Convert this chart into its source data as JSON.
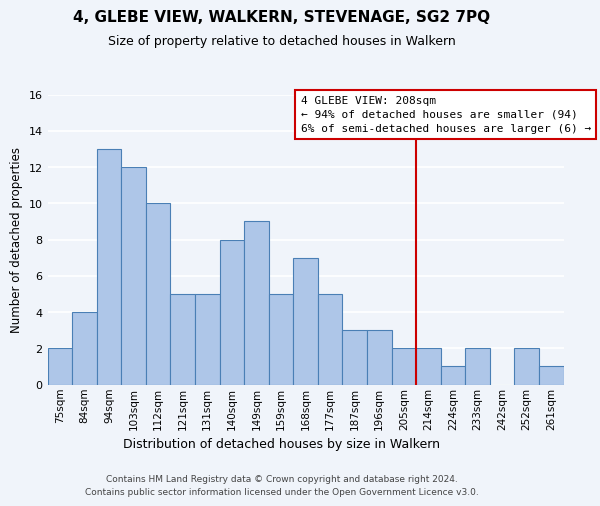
{
  "title": "4, GLEBE VIEW, WALKERN, STEVENAGE, SG2 7PQ",
  "subtitle": "Size of property relative to detached houses in Walkern",
  "xlabel": "Distribution of detached houses by size in Walkern",
  "ylabel": "Number of detached properties",
  "bar_labels": [
    "75sqm",
    "84sqm",
    "94sqm",
    "103sqm",
    "112sqm",
    "121sqm",
    "131sqm",
    "140sqm",
    "149sqm",
    "159sqm",
    "168sqm",
    "177sqm",
    "187sqm",
    "196sqm",
    "205sqm",
    "214sqm",
    "224sqm",
    "233sqm",
    "242sqm",
    "252sqm",
    "261sqm"
  ],
  "bar_values": [
    2,
    4,
    13,
    12,
    10,
    5,
    5,
    8,
    9,
    5,
    7,
    5,
    3,
    3,
    2,
    2,
    1,
    2,
    0,
    2,
    1
  ],
  "bar_color": "#aec6e8",
  "bar_edge_color": "#4a7fb5",
  "vline_x": 14.5,
  "vline_color": "#cc0000",
  "ylim": [
    0,
    16
  ],
  "yticks": [
    0,
    2,
    4,
    6,
    8,
    10,
    12,
    14,
    16
  ],
  "annotation_title": "4 GLEBE VIEW: 208sqm",
  "annotation_line1": "← 94% of detached houses are smaller (94)",
  "annotation_line2": "6% of semi-detached houses are larger (6) →",
  "annotation_box_color": "#ffffff",
  "annotation_box_edge": "#cc0000",
  "footer1": "Contains HM Land Registry data © Crown copyright and database right 2024.",
  "footer2": "Contains public sector information licensed under the Open Government Licence v3.0.",
  "background_color": "#f0f4fa",
  "grid_color": "#ffffff"
}
